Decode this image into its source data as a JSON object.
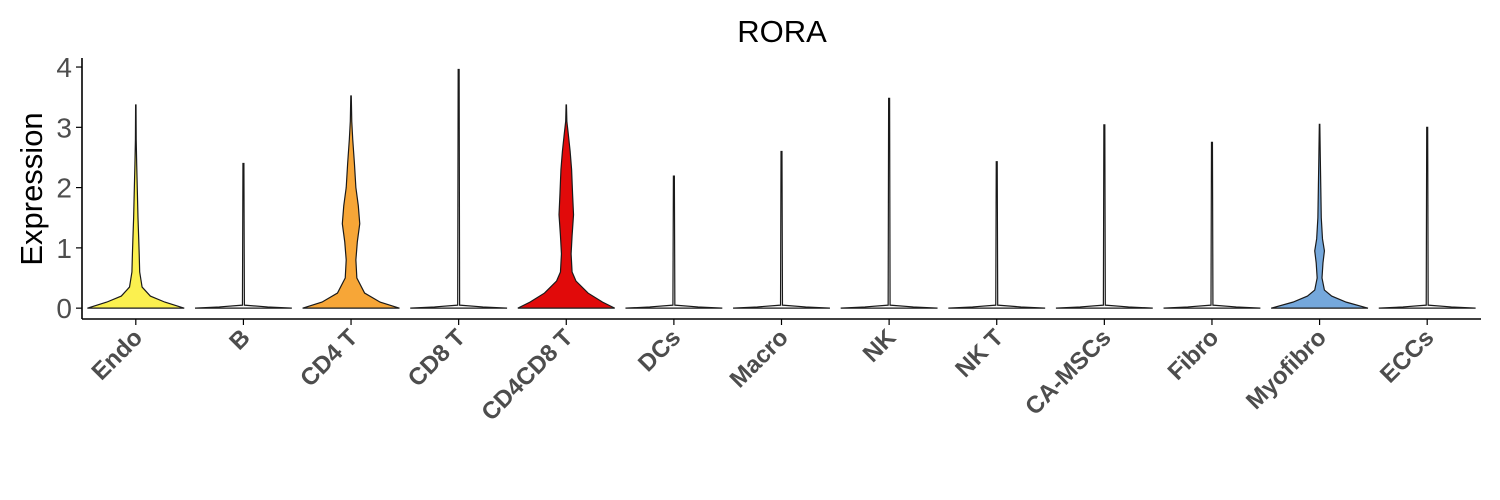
{
  "chart_data": {
    "type": "violin",
    "title": "RORA",
    "xlabel": "",
    "ylabel": "Expression",
    "ylim": [
      -0.18,
      4.15
    ],
    "yticks": [
      0,
      1,
      2,
      3,
      4
    ],
    "grid": false,
    "legend": "none",
    "categories": [
      "Endo",
      "B",
      "CD4 T",
      "CD8 T",
      "CD4CD8 T",
      "DCs",
      "Macro",
      "NK",
      "NK T",
      "CA-MSCs",
      "Fibro",
      "Myofibro",
      "ECCs"
    ],
    "series": [
      {
        "category": "Endo",
        "color": "#FBF04F",
        "max": 3.37,
        "profile": [
          [
            0,
            1
          ],
          [
            0.1,
            0.6
          ],
          [
            0.2,
            0.3
          ],
          [
            0.35,
            0.13
          ],
          [
            0.6,
            0.08
          ],
          [
            0.9,
            0.07
          ],
          [
            1.15,
            0.06
          ],
          [
            1.5,
            0.045
          ],
          [
            2.0,
            0.03
          ],
          [
            2.4,
            0.018
          ],
          [
            2.8,
            0.008
          ],
          [
            3.37,
            0.004
          ]
        ]
      },
      {
        "category": "B",
        "color": "#F8F8F8",
        "max": 2.4,
        "profile": [
          [
            0,
            1
          ],
          [
            0.02,
            0.5
          ],
          [
            0.05,
            0.02
          ],
          [
            2.4,
            0.01
          ]
        ]
      },
      {
        "category": "CD4 T",
        "color": "#F7A637",
        "max": 3.52,
        "profile": [
          [
            0,
            1
          ],
          [
            0.1,
            0.6
          ],
          [
            0.25,
            0.28
          ],
          [
            0.5,
            0.12
          ],
          [
            0.8,
            0.1
          ],
          [
            1.1,
            0.13
          ],
          [
            1.4,
            0.18
          ],
          [
            1.7,
            0.15
          ],
          [
            2.0,
            0.1
          ],
          [
            2.4,
            0.07
          ],
          [
            2.8,
            0.035
          ],
          [
            3.1,
            0.015
          ],
          [
            3.52,
            0.005
          ]
        ]
      },
      {
        "category": "CD8 T",
        "color": "#F8F8F8",
        "max": 3.96,
        "profile": [
          [
            0,
            1
          ],
          [
            0.02,
            0.5
          ],
          [
            0.05,
            0.02
          ],
          [
            3.96,
            0.01
          ]
        ]
      },
      {
        "category": "CD4CD8 T",
        "color": "#E10A0A",
        "max": 3.37,
        "profile": [
          [
            0,
            1
          ],
          [
            0.1,
            0.75
          ],
          [
            0.25,
            0.45
          ],
          [
            0.45,
            0.2
          ],
          [
            0.6,
            0.12
          ],
          [
            0.9,
            0.1
          ],
          [
            1.2,
            0.12
          ],
          [
            1.55,
            0.15
          ],
          [
            1.9,
            0.13
          ],
          [
            2.3,
            0.11
          ],
          [
            2.6,
            0.08
          ],
          [
            2.9,
            0.04
          ],
          [
            3.1,
            0.012
          ],
          [
            3.37,
            0.004
          ]
        ]
      },
      {
        "category": "DCs",
        "color": "#F8F8F8",
        "max": 2.19,
        "profile": [
          [
            0,
            1
          ],
          [
            0.02,
            0.5
          ],
          [
            0.05,
            0.02
          ],
          [
            2.19,
            0.01
          ]
        ]
      },
      {
        "category": "Macro",
        "color": "#F8F8F8",
        "max": 2.6,
        "profile": [
          [
            0,
            1
          ],
          [
            0.02,
            0.5
          ],
          [
            0.05,
            0.02
          ],
          [
            2.6,
            0.01
          ]
        ]
      },
      {
        "category": "NK",
        "color": "#F8F8F8",
        "max": 3.48,
        "profile": [
          [
            0,
            1
          ],
          [
            0.02,
            0.5
          ],
          [
            0.05,
            0.02
          ],
          [
            3.48,
            0.01
          ]
        ]
      },
      {
        "category": "NK T",
        "color": "#F8F8F8",
        "max": 2.43,
        "profile": [
          [
            0,
            1
          ],
          [
            0.02,
            0.5
          ],
          [
            0.05,
            0.02
          ],
          [
            2.43,
            0.01
          ]
        ]
      },
      {
        "category": "CA-MSCs",
        "color": "#F8F8F8",
        "max": 3.04,
        "profile": [
          [
            0,
            1
          ],
          [
            0.02,
            0.5
          ],
          [
            0.05,
            0.02
          ],
          [
            3.04,
            0.01
          ]
        ]
      },
      {
        "category": "Fibro",
        "color": "#F8F8F8",
        "max": 2.75,
        "profile": [
          [
            0,
            1
          ],
          [
            0.02,
            0.5
          ],
          [
            0.05,
            0.02
          ],
          [
            2.75,
            0.01
          ]
        ]
      },
      {
        "category": "Myofibro",
        "color": "#75A8DC",
        "max": 3.05,
        "profile": [
          [
            0,
            1
          ],
          [
            0.1,
            0.55
          ],
          [
            0.2,
            0.25
          ],
          [
            0.3,
            0.1
          ],
          [
            0.5,
            0.05
          ],
          [
            0.75,
            0.07
          ],
          [
            0.95,
            0.1
          ],
          [
            1.15,
            0.06
          ],
          [
            1.5,
            0.035
          ],
          [
            2.0,
            0.025
          ],
          [
            2.5,
            0.015
          ],
          [
            3.05,
            0.005
          ]
        ]
      },
      {
        "category": "ECCs",
        "color": "#F8F8F8",
        "max": 3.0,
        "profile": [
          [
            0,
            1
          ],
          [
            0.02,
            0.5
          ],
          [
            0.05,
            0.02
          ],
          [
            3.0,
            0.01
          ]
        ]
      }
    ]
  }
}
